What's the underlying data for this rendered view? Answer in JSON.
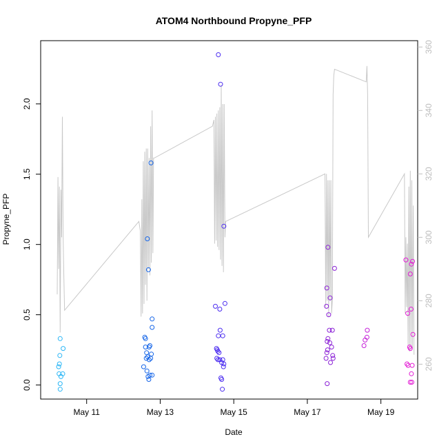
{
  "chart_data": {
    "type": "scatter",
    "title": "ATOM4 Northbound Propyne_PFP",
    "xlabel": "Date",
    "ylabel": "Propyne_PFP",
    "xlim": [
      9.75,
      20.0
    ],
    "ylim": [
      -0.1,
      2.45
    ],
    "y2lim": [
      249,
      362
    ],
    "x_ticks": [
      {
        "x": 11,
        "label": "May 11"
      },
      {
        "x": 13,
        "label": "May 13"
      },
      {
        "x": 15,
        "label": "May 15"
      },
      {
        "x": 17,
        "label": "May 17"
      },
      {
        "x": 19,
        "label": "May 19"
      }
    ],
    "y_ticks": [
      "0.0",
      "0.5",
      "1.0",
      "1.5",
      "2.0"
    ],
    "y2_ticks": [
      "260",
      "280",
      "300",
      "320",
      "340",
      "360"
    ],
    "grid": false,
    "colors": {
      "axis": "#000000",
      "secondary_axis": "#bdbdbd",
      "altitude_line": "#c8c8c8"
    },
    "series": [
      {
        "color": "#29b6f6",
        "points": [
          [
            10.28,
            0.33
          ],
          [
            10.27,
            0.21
          ],
          [
            10.26,
            0.15
          ],
          [
            10.24,
            0.13
          ],
          [
            10.25,
            0.08
          ],
          [
            10.3,
            0.06
          ],
          [
            10.35,
            0.08
          ],
          [
            10.28,
            0.01
          ],
          [
            10.28,
            -0.03
          ],
          [
            10.36,
            0.26
          ]
        ]
      },
      {
        "color": "#1565e8",
        "points": [
          [
            12.58,
            0.34
          ],
          [
            12.6,
            0.33
          ],
          [
            12.65,
            1.04
          ],
          [
            12.68,
            0.82
          ],
          [
            12.75,
            1.58
          ],
          [
            12.78,
            0.47
          ],
          [
            12.78,
            0.41
          ],
          [
            12.6,
            0.27
          ],
          [
            12.7,
            0.27
          ],
          [
            12.72,
            0.28
          ],
          [
            12.63,
            0.23
          ],
          [
            12.76,
            0.22
          ],
          [
            12.66,
            0.2
          ],
          [
            12.62,
            0.19
          ],
          [
            12.7,
            0.18
          ],
          [
            12.74,
            0.19
          ],
          [
            12.55,
            0.13
          ],
          [
            12.64,
            0.1
          ],
          [
            12.72,
            0.07
          ],
          [
            12.67,
            0.06
          ],
          [
            12.69,
            0.04
          ],
          [
            12.78,
            0.07
          ]
        ]
      },
      {
        "color": "#4a2bf0",
        "points": [
          [
            14.58,
            2.35
          ],
          [
            14.64,
            2.14
          ],
          [
            14.73,
            1.13
          ],
          [
            14.76,
            0.58
          ],
          [
            14.5,
            0.56
          ],
          [
            14.62,
            0.54
          ],
          [
            14.63,
            0.39
          ],
          [
            14.58,
            0.35
          ],
          [
            14.7,
            0.35
          ],
          [
            14.53,
            0.26
          ],
          [
            14.55,
            0.25
          ],
          [
            14.57,
            0.24
          ],
          [
            14.6,
            0.23
          ],
          [
            14.54,
            0.19
          ],
          [
            14.57,
            0.18
          ],
          [
            14.62,
            0.18
          ],
          [
            14.7,
            0.18
          ],
          [
            14.67,
            0.16
          ],
          [
            14.73,
            0.15
          ],
          [
            14.72,
            0.13
          ],
          [
            14.65,
            0.05
          ],
          [
            14.67,
            0.04
          ],
          [
            14.69,
            -0.03
          ]
        ]
      },
      {
        "color": "#8a1fd6",
        "points": [
          [
            17.56,
            0.98
          ],
          [
            17.62,
            0.62
          ],
          [
            17.74,
            0.83
          ],
          [
            17.53,
            0.69
          ],
          [
            17.52,
            0.56
          ],
          [
            17.58,
            0.5
          ],
          [
            17.6,
            0.39
          ],
          [
            17.68,
            0.39
          ],
          [
            17.56,
            0.33
          ],
          [
            17.54,
            0.31
          ],
          [
            17.61,
            0.3
          ],
          [
            17.66,
            0.27
          ],
          [
            17.55,
            0.25
          ],
          [
            17.53,
            0.23
          ],
          [
            17.69,
            0.21
          ],
          [
            17.51,
            0.19
          ],
          [
            17.7,
            0.19
          ],
          [
            17.63,
            0.16
          ],
          [
            17.54,
            0.01
          ]
        ]
      },
      {
        "color": "#c41fd9",
        "points": [
          [
            18.63,
            0.39
          ],
          [
            18.57,
            0.32
          ],
          [
            18.62,
            0.34
          ],
          [
            18.54,
            0.28
          ]
        ]
      },
      {
        "color": "#e319d4",
        "points": [
          [
            19.68,
            0.89
          ],
          [
            19.86,
            0.88
          ],
          [
            19.83,
            0.86
          ],
          [
            19.8,
            0.79
          ],
          [
            19.82,
            0.54
          ],
          [
            19.73,
            0.51
          ],
          [
            19.87,
            0.36
          ],
          [
            19.78,
            0.27
          ],
          [
            19.8,
            0.26
          ],
          [
            19.71,
            0.15
          ],
          [
            19.74,
            0.14
          ],
          [
            19.85,
            0.14
          ],
          [
            19.83,
            0.08
          ],
          [
            19.8,
            0.02
          ],
          [
            19.84,
            0.02
          ]
        ]
      }
    ],
    "altitude_line": [
      [
        10.2,
        282
      ],
      [
        10.22,
        319
      ],
      [
        10.24,
        290
      ],
      [
        10.26,
        316
      ],
      [
        10.28,
        270
      ],
      [
        10.3,
        315
      ],
      [
        10.32,
        300
      ],
      [
        10.34,
        338
      ],
      [
        10.36,
        300
      ],
      [
        10.38,
        288
      ],
      [
        10.4,
        277
      ],
      [
        12.42,
        305
      ],
      [
        12.46,
        302
      ],
      [
        12.48,
        275
      ],
      [
        12.5,
        312
      ],
      [
        12.52,
        276
      ],
      [
        12.54,
        324
      ],
      [
        12.56,
        279
      ],
      [
        12.58,
        327
      ],
      [
        12.6,
        285
      ],
      [
        12.62,
        328
      ],
      [
        12.64,
        280
      ],
      [
        12.66,
        328
      ],
      [
        12.68,
        290
      ],
      [
        12.7,
        325
      ],
      [
        12.72,
        288
      ],
      [
        12.74,
        335
      ],
      [
        12.76,
        292
      ],
      [
        12.78,
        340
      ],
      [
        12.8,
        295
      ],
      [
        12.82,
        325
      ],
      [
        12.84,
        325
      ],
      [
        14.42,
        335
      ],
      [
        14.46,
        337
      ],
      [
        14.48,
        298
      ],
      [
        14.5,
        338
      ],
      [
        14.52,
        299
      ],
      [
        14.54,
        339
      ],
      [
        14.56,
        297
      ],
      [
        14.58,
        340
      ],
      [
        14.6,
        296
      ],
      [
        14.62,
        341
      ],
      [
        14.64,
        293
      ],
      [
        14.66,
        348
      ],
      [
        14.68,
        291
      ],
      [
        14.7,
        342
      ],
      [
        14.72,
        289
      ],
      [
        14.74,
        342
      ],
      [
        14.76,
        300
      ],
      [
        14.78,
        305
      ],
      [
        17.48,
        320
      ],
      [
        17.5,
        278
      ],
      [
        17.52,
        320
      ],
      [
        17.54,
        280
      ],
      [
        17.56,
        318
      ],
      [
        17.58,
        275
      ],
      [
        17.6,
        318
      ],
      [
        17.62,
        280
      ],
      [
        17.64,
        318
      ],
      [
        17.66,
        276
      ],
      [
        17.68,
        280
      ],
      [
        17.7,
        345
      ],
      [
        17.72,
        351
      ],
      [
        17.74,
        353
      ],
      [
        18.6,
        349
      ],
      [
        18.62,
        354
      ],
      [
        18.64,
        345
      ],
      [
        18.66,
        300
      ],
      [
        19.64,
        320
      ],
      [
        19.66,
        276
      ],
      [
        19.68,
        300
      ],
      [
        19.7,
        278
      ],
      [
        19.72,
        298
      ],
      [
        19.74,
        266
      ],
      [
        19.76,
        316
      ],
      [
        19.78,
        264
      ],
      [
        19.8,
        321
      ],
      [
        19.82,
        265
      ],
      [
        19.84,
        318
      ],
      [
        19.86,
        265
      ],
      [
        19.88,
        310
      ],
      [
        19.9,
        263
      ]
    ]
  }
}
